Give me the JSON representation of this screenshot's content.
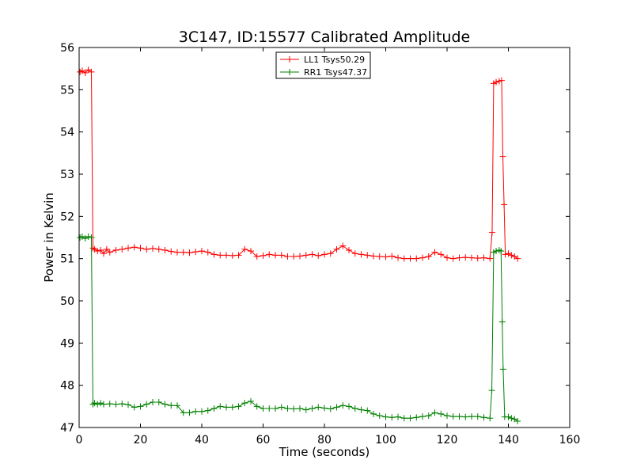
{
  "chart_data": {
    "type": "line",
    "title": "3C147, ID:15577 Calibrated Amplitude",
    "xlabel": "Time (seconds)",
    "ylabel": "Power in Kelvin",
    "xlim": [
      0,
      160
    ],
    "ylim": [
      47,
      56
    ],
    "x_ticks": [
      "0",
      "20",
      "40",
      "60",
      "80",
      "100",
      "120",
      "140",
      "160"
    ],
    "y_ticks": [
      "47",
      "48",
      "49",
      "50",
      "51",
      "52",
      "53",
      "54",
      "55",
      "56"
    ],
    "grid": false,
    "legend_position": "top-center",
    "marker": "plus",
    "series": [
      {
        "name": "LL1 Tsys50.29",
        "color": "#ff0000",
        "points": [
          [
            0.3,
            55.42
          ],
          [
            1,
            55.45
          ],
          [
            2,
            55.4
          ],
          [
            3,
            55.47
          ],
          [
            4,
            55.42
          ],
          [
            4.5,
            51.25
          ],
          [
            5,
            51.22
          ],
          [
            6,
            51.18
          ],
          [
            7,
            51.2
          ],
          [
            8,
            51.12
          ],
          [
            9,
            51.22
          ],
          [
            10,
            51.15
          ],
          [
            12,
            51.2
          ],
          [
            14,
            51.22
          ],
          [
            16,
            51.25
          ],
          [
            18,
            51.27
          ],
          [
            20,
            51.25
          ],
          [
            22,
            51.22
          ],
          [
            24,
            51.24
          ],
          [
            26,
            51.22
          ],
          [
            28,
            51.2
          ],
          [
            30,
            51.17
          ],
          [
            32,
            51.15
          ],
          [
            34,
            51.15
          ],
          [
            36,
            51.14
          ],
          [
            38,
            51.16
          ],
          [
            40,
            51.18
          ],
          [
            42,
            51.15
          ],
          [
            44,
            51.1
          ],
          [
            46,
            51.08
          ],
          [
            48,
            51.08
          ],
          [
            50,
            51.07
          ],
          [
            52,
            51.08
          ],
          [
            54,
            51.22
          ],
          [
            56,
            51.18
          ],
          [
            58,
            51.05
          ],
          [
            60,
            51.07
          ],
          [
            62,
            51.1
          ],
          [
            64,
            51.08
          ],
          [
            66,
            51.08
          ],
          [
            68,
            51.05
          ],
          [
            70,
            51.05
          ],
          [
            72,
            51.06
          ],
          [
            74,
            51.08
          ],
          [
            76,
            51.1
          ],
          [
            78,
            51.07
          ],
          [
            80,
            51.1
          ],
          [
            82,
            51.12
          ],
          [
            84,
            51.22
          ],
          [
            86,
            51.3
          ],
          [
            88,
            51.2
          ],
          [
            90,
            51.12
          ],
          [
            92,
            51.1
          ],
          [
            94,
            51.08
          ],
          [
            96,
            51.06
          ],
          [
            98,
            51.05
          ],
          [
            100,
            51.04
          ],
          [
            102,
            51.06
          ],
          [
            104,
            51.02
          ],
          [
            106,
            51.0
          ],
          [
            108,
            51.0
          ],
          [
            110,
            51.0
          ],
          [
            112,
            51.02
          ],
          [
            114,
            51.05
          ],
          [
            116,
            51.15
          ],
          [
            118,
            51.1
          ],
          [
            120,
            51.02
          ],
          [
            122,
            51.0
          ],
          [
            124,
            51.02
          ],
          [
            126,
            51.03
          ],
          [
            128,
            51.02
          ],
          [
            130,
            51.01
          ],
          [
            132,
            51.02
          ],
          [
            134,
            51.0
          ],
          [
            134.7,
            51.62
          ],
          [
            135.2,
            55.15
          ],
          [
            136,
            55.18
          ],
          [
            137,
            55.2
          ],
          [
            137.8,
            55.22
          ],
          [
            138.2,
            53.42
          ],
          [
            138.6,
            52.28
          ],
          [
            139,
            51.1
          ],
          [
            140,
            51.12
          ],
          [
            141,
            51.08
          ],
          [
            142,
            51.05
          ],
          [
            143,
            51.0
          ]
        ]
      },
      {
        "name": "RR1 Tsys47.37",
        "color": "#008000",
        "points": [
          [
            0.3,
            51.5
          ],
          [
            1,
            51.52
          ],
          [
            2,
            51.48
          ],
          [
            3,
            51.52
          ],
          [
            4,
            51.5
          ],
          [
            4.5,
            47.55
          ],
          [
            5,
            47.58
          ],
          [
            6,
            47.55
          ],
          [
            7,
            47.58
          ],
          [
            8,
            47.55
          ],
          [
            10,
            47.56
          ],
          [
            12,
            47.55
          ],
          [
            14,
            47.56
          ],
          [
            16,
            47.54
          ],
          [
            18,
            47.48
          ],
          [
            20,
            47.5
          ],
          [
            22,
            47.55
          ],
          [
            24,
            47.6
          ],
          [
            26,
            47.6
          ],
          [
            28,
            47.55
          ],
          [
            30,
            47.52
          ],
          [
            32,
            47.52
          ],
          [
            34,
            47.35
          ],
          [
            36,
            47.35
          ],
          [
            38,
            47.38
          ],
          [
            40,
            47.38
          ],
          [
            42,
            47.4
          ],
          [
            44,
            47.45
          ],
          [
            46,
            47.5
          ],
          [
            48,
            47.48
          ],
          [
            50,
            47.48
          ],
          [
            52,
            47.5
          ],
          [
            54,
            47.58
          ],
          [
            56,
            47.62
          ],
          [
            58,
            47.5
          ],
          [
            60,
            47.45
          ],
          [
            62,
            47.45
          ],
          [
            64,
            47.45
          ],
          [
            66,
            47.48
          ],
          [
            68,
            47.45
          ],
          [
            70,
            47.44
          ],
          [
            72,
            47.45
          ],
          [
            74,
            47.42
          ],
          [
            76,
            47.45
          ],
          [
            78,
            47.48
          ],
          [
            80,
            47.46
          ],
          [
            82,
            47.44
          ],
          [
            84,
            47.48
          ],
          [
            86,
            47.52
          ],
          [
            88,
            47.5
          ],
          [
            90,
            47.45
          ],
          [
            92,
            47.42
          ],
          [
            94,
            47.4
          ],
          [
            96,
            47.32
          ],
          [
            98,
            47.28
          ],
          [
            100,
            47.25
          ],
          [
            102,
            47.24
          ],
          [
            104,
            47.25
          ],
          [
            106,
            47.22
          ],
          [
            108,
            47.22
          ],
          [
            110,
            47.24
          ],
          [
            112,
            47.26
          ],
          [
            114,
            47.28
          ],
          [
            116,
            47.35
          ],
          [
            118,
            47.32
          ],
          [
            120,
            47.28
          ],
          [
            122,
            47.26
          ],
          [
            124,
            47.26
          ],
          [
            126,
            47.25
          ],
          [
            128,
            47.26
          ],
          [
            130,
            47.26
          ],
          [
            132,
            47.24
          ],
          [
            134,
            47.22
          ],
          [
            134.6,
            47.88
          ],
          [
            135.2,
            51.15
          ],
          [
            136,
            51.18
          ],
          [
            137,
            51.2
          ],
          [
            137.6,
            51.18
          ],
          [
            138.0,
            49.5
          ],
          [
            138.3,
            48.38
          ],
          [
            138.8,
            47.25
          ],
          [
            140,
            47.25
          ],
          [
            141,
            47.22
          ],
          [
            142,
            47.2
          ],
          [
            143,
            47.15
          ]
        ]
      }
    ]
  }
}
